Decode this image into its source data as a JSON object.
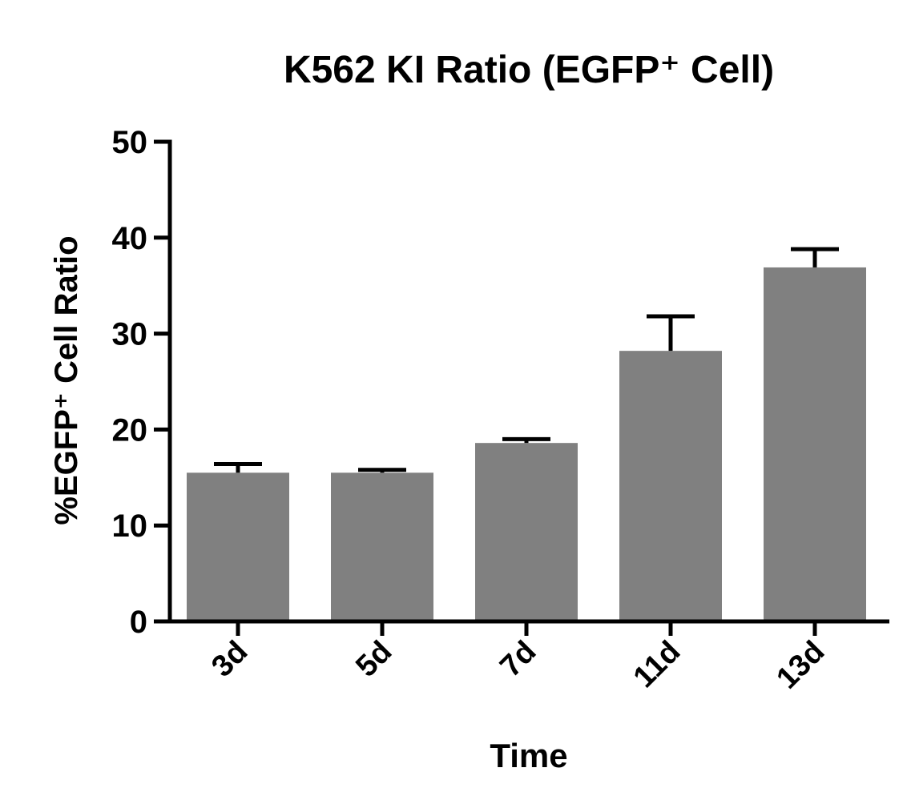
{
  "chart_data": {
    "type": "bar",
    "title": "K562 KI Ratio (EGFP⁺ Cell)",
    "x_label": "Time",
    "y_label": "%EGFP⁺ Cell Ratio",
    "categories": [
      "3d",
      "5d",
      "7d",
      "11d",
      "13d"
    ],
    "values": [
      15.5,
      15.5,
      18.6,
      28.2,
      36.9
    ],
    "errors": [
      0.9,
      0.3,
      0.4,
      3.6,
      1.9
    ],
    "color": "#808080",
    "ylim": [
      0,
      50
    ],
    "yticks": [
      0,
      10,
      20,
      30,
      40,
      50
    ],
    "grid": false
  }
}
